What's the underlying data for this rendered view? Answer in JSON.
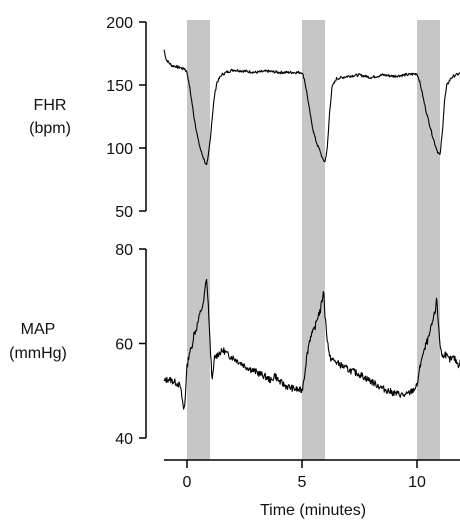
{
  "chart_data": [
    {
      "type": "line",
      "panel": "top",
      "ylabel_lines": [
        "FHR",
        "(bpm)"
      ],
      "ylim": [
        50,
        200
      ],
      "yticks": [
        50,
        100,
        150,
        200
      ],
      "xlim": [
        -1,
        12
      ],
      "shaded_intervals": [
        [
          0,
          1
        ],
        [
          5,
          6
        ],
        [
          10,
          11
        ]
      ],
      "colors": {
        "shade": "#c6c6c6",
        "line": "#000000"
      },
      "series": [
        {
          "x": [
            -1.0,
            -0.9,
            -0.8,
            -0.7,
            -0.6,
            -0.5,
            -0.4,
            -0.3,
            -0.2,
            -0.1,
            0.0,
            0.1,
            0.2,
            0.3,
            0.4,
            0.5,
            0.6,
            0.7,
            0.8,
            0.85,
            0.9,
            1.0,
            1.1,
            1.2,
            1.3,
            1.5,
            1.7,
            2.0,
            2.5,
            3.0,
            3.5,
            4.0,
            4.5,
            5.0,
            5.1,
            5.2,
            5.3,
            5.4,
            5.5,
            5.6,
            5.7,
            5.8,
            5.9,
            6.0,
            6.1,
            6.2,
            6.3,
            6.5,
            7.0,
            7.5,
            8.0,
            8.5,
            9.0,
            9.5,
            10.0,
            10.1,
            10.2,
            10.3,
            10.4,
            10.5,
            10.6,
            10.7,
            10.8,
            10.9,
            11.0,
            11.1,
            11.2,
            11.3,
            11.5,
            11.7,
            12.0
          ],
          "y": [
            178,
            170,
            168,
            166,
            165,
            165,
            164,
            164,
            163,
            163,
            160,
            150,
            138,
            125,
            115,
            105,
            98,
            93,
            88,
            86,
            90,
            105,
            125,
            142,
            152,
            158,
            160,
            162,
            161,
            160,
            161,
            160,
            160,
            160,
            155,
            145,
            133,
            122,
            113,
            106,
            101,
            97,
            91,
            89,
            100,
            128,
            148,
            155,
            157,
            158,
            156,
            158,
            157,
            158,
            159,
            154,
            146,
            137,
            129,
            122,
            115,
            108,
            102,
            97,
            94,
            112,
            138,
            150,
            156,
            158,
            160
          ]
        }
      ]
    },
    {
      "type": "line",
      "panel": "bottom",
      "ylabel_lines": [
        "MAP",
        "(mmHg)"
      ],
      "ylim": [
        40,
        80
      ],
      "yticks": [
        40,
        60,
        80
      ],
      "xlim": [
        -1,
        12
      ],
      "xticks": [
        0,
        5,
        10
      ],
      "xlabel": "Time (minutes)",
      "shaded_intervals": [
        [
          0,
          1
        ],
        [
          5,
          6
        ],
        [
          10,
          11
        ]
      ],
      "colors": {
        "shade": "#c6c6c6",
        "line": "#000000"
      },
      "series": [
        {
          "x": [
            -1.0,
            -0.8,
            -0.6,
            -0.4,
            -0.3,
            -0.2,
            -0.15,
            -0.1,
            0.0,
            0.1,
            0.2,
            0.3,
            0.4,
            0.5,
            0.6,
            0.7,
            0.8,
            0.85,
            0.9,
            0.95,
            1.0,
            1.1,
            1.2,
            1.4,
            1.6,
            1.8,
            2.0,
            2.3,
            2.6,
            3.0,
            3.4,
            3.7,
            3.8,
            4.0,
            4.3,
            4.6,
            5.0,
            5.1,
            5.2,
            5.3,
            5.4,
            5.5,
            5.6,
            5.7,
            5.8,
            5.9,
            5.95,
            6.0,
            6.1,
            6.2,
            6.5,
            7.0,
            7.5,
            8.0,
            8.5,
            9.0,
            9.5,
            9.8,
            10.0,
            10.1,
            10.2,
            10.3,
            10.4,
            10.5,
            10.6,
            10.7,
            10.8,
            10.85,
            10.9,
            11.0,
            11.1,
            11.2,
            11.4,
            11.6,
            11.8,
            12.0
          ],
          "y": [
            52,
            52.5,
            52,
            51.5,
            51,
            48,
            46,
            47,
            55,
            58,
            59,
            62,
            63,
            65,
            67,
            68,
            72,
            74,
            70,
            66,
            60,
            52,
            57,
            58,
            58.5,
            57.5,
            57,
            56,
            55,
            54,
            53,
            52,
            53.5,
            52,
            51,
            50.5,
            50,
            53,
            57,
            60,
            62,
            62.5,
            64,
            66,
            67,
            70,
            71,
            66,
            61,
            57,
            56,
            54.5,
            53.5,
            52,
            50.5,
            49.5,
            49,
            50,
            51,
            54,
            57,
            58,
            60,
            61,
            63,
            65,
            67,
            70,
            66,
            60,
            57,
            58,
            56.5,
            57,
            55.5,
            57
          ]
        }
      ]
    }
  ]
}
